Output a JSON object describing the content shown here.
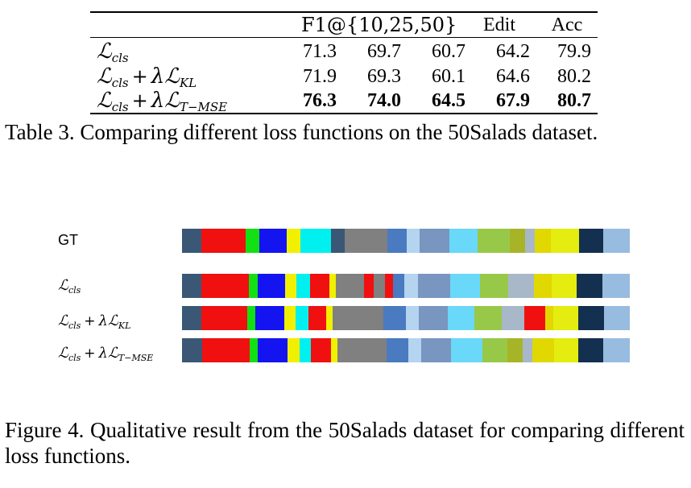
{
  "table": {
    "header": {
      "f1": "F1@{10,25,50}",
      "edit": "Edit",
      "acc": "Acc"
    },
    "rows": [
      {
        "method": {
          "base": "ℒ",
          "sub": "cls",
          "extra": "",
          "extra_sub": ""
        },
        "values": [
          "71.3",
          "69.7",
          "60.7",
          "64.2",
          "79.9"
        ],
        "bold": false
      },
      {
        "method": {
          "base": "ℒ",
          "sub": "cls",
          "extra": "λℒ",
          "extra_sub": "KL"
        },
        "values": [
          "71.9",
          "69.3",
          "60.1",
          "64.6",
          "80.2"
        ],
        "bold": false
      },
      {
        "method": {
          "base": "ℒ",
          "sub": "cls",
          "extra": "λℒ",
          "extra_sub": "T−MSE"
        },
        "values": [
          "76.3",
          "74.0",
          "64.5",
          "67.9",
          "80.7"
        ],
        "bold": true
      }
    ]
  },
  "caption3": "Table 3. Comparing different loss functions on the 50Salads dataset.",
  "figure": {
    "rows": [
      {
        "label_text": "GT",
        "math": false,
        "segments": [
          [
            "#3a5876",
            24
          ],
          [
            "#f01010",
            54
          ],
          [
            "#12e012",
            16
          ],
          [
            "#1414f0",
            34
          ],
          [
            "#f0f000",
            16
          ],
          [
            "#00f0f0",
            38
          ],
          [
            "#3a5876",
            16
          ],
          [
            "#808080",
            52
          ],
          [
            "#4a7ac0",
            24
          ],
          [
            "#b4d4f0",
            16
          ],
          [
            "#7896c0",
            36
          ],
          [
            "#6ad8f8",
            34
          ],
          [
            "#98c848",
            40
          ],
          [
            "#a8b428",
            18
          ],
          [
            "#a8b8c8",
            12
          ],
          [
            "#e0d800",
            20
          ],
          [
            "#e4ec10",
            34
          ],
          [
            "#143050",
            30
          ],
          [
            "#98bce0",
            32
          ]
        ]
      },
      {
        "label_text": "",
        "math": true,
        "label": {
          "sub": "cls",
          "extra": "",
          "extra_sub": ""
        },
        "segments": [
          [
            "#3a5876",
            24
          ],
          [
            "#f01010",
            58
          ],
          [
            "#12e012",
            10
          ],
          [
            "#1414f0",
            34
          ],
          [
            "#f0f000",
            14
          ],
          [
            "#00f0f0",
            16
          ],
          [
            "#f01010",
            24
          ],
          [
            "#f0f000",
            8
          ],
          [
            "#808080",
            34
          ],
          [
            "#f01010",
            12
          ],
          [
            "#808080",
            14
          ],
          [
            "#f01010",
            10
          ],
          [
            "#4a7ac0",
            14
          ],
          [
            "#b4d4f0",
            16
          ],
          [
            "#7896c0",
            40
          ],
          [
            "#6ad8f8",
            36
          ],
          [
            "#98c848",
            34
          ],
          [
            "#a8b8c8",
            32
          ],
          [
            "#e0d800",
            22
          ],
          [
            "#e4ec10",
            30
          ],
          [
            "#143050",
            32
          ],
          [
            "#98bce0",
            33
          ]
        ]
      },
      {
        "label_text": "",
        "math": true,
        "label": {
          "sub": "cls",
          "extra": "λℒ",
          "extra_sub": "KL"
        },
        "segments": [
          [
            "#3a5876",
            24
          ],
          [
            "#f01010",
            58
          ],
          [
            "#12e012",
            10
          ],
          [
            "#1414f0",
            36
          ],
          [
            "#f0f000",
            14
          ],
          [
            "#00f0f0",
            16
          ],
          [
            "#f01010",
            22
          ],
          [
            "#f0f000",
            8
          ],
          [
            "#808080",
            64
          ],
          [
            "#4a7ac0",
            28
          ],
          [
            "#b4d4f0",
            16
          ],
          [
            "#7896c0",
            36
          ],
          [
            "#6ad8f8",
            34
          ],
          [
            "#98c848",
            34
          ],
          [
            "#a8b8c8",
            28
          ],
          [
            "#f01010",
            26
          ],
          [
            "#e0d800",
            10
          ],
          [
            "#e4ec10",
            32
          ],
          [
            "#143050",
            32
          ],
          [
            "#98bce0",
            32
          ]
        ]
      },
      {
        "label_text": "",
        "math": true,
        "label": {
          "sub": "cls",
          "extra": "λℒ",
          "extra_sub": "T−MSE"
        },
        "segments": [
          [
            "#3a5876",
            24
          ],
          [
            "#f01010",
            58
          ],
          [
            "#12e012",
            10
          ],
          [
            "#1414f0",
            36
          ],
          [
            "#f0f000",
            14
          ],
          [
            "#00f0f0",
            14
          ],
          [
            "#f01010",
            24
          ],
          [
            "#f0f000",
            8
          ],
          [
            "#808080",
            60
          ],
          [
            "#4a7ac0",
            26
          ],
          [
            "#b4d4f0",
            16
          ],
          [
            "#7896c0",
            36
          ],
          [
            "#6ad8f8",
            38
          ],
          [
            "#98c848",
            30
          ],
          [
            "#a8b428",
            18
          ],
          [
            "#a8b8c8",
            12
          ],
          [
            "#e0d800",
            26
          ],
          [
            "#e4ec10",
            30
          ],
          [
            "#143050",
            30
          ],
          [
            "#98bce0",
            32
          ]
        ]
      }
    ]
  },
  "caption4": "Figure 4. Qualitative result from the 50Salads dataset for comparing different loss functions."
}
